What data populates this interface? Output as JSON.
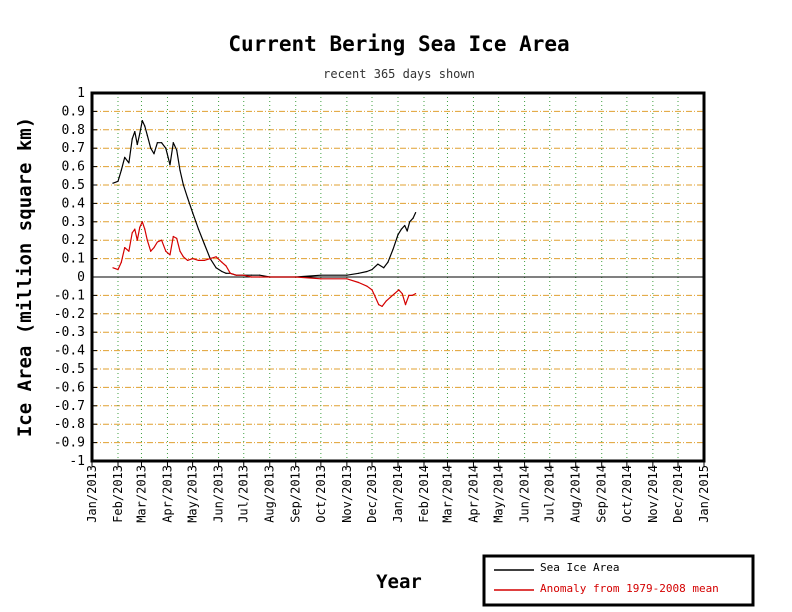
{
  "chart_data": {
    "type": "line",
    "title": "Current Bering Sea Ice Area",
    "subtitle": "recent 365 days shown",
    "xlabel": "Year",
    "ylabel": "Ice Area (million square km)",
    "ylim": [
      -1,
      1
    ],
    "y_ticks": [
      "1",
      "0.9",
      "0.8",
      "0.7",
      "0.6",
      "0.5",
      "0.4",
      "0.3",
      "0.2",
      "0.1",
      "0",
      "-0.1",
      "-0.2",
      "-0.3",
      "-0.4",
      "-0.5",
      "-0.6",
      "-0.7",
      "-0.8",
      "-0.9",
      "-1"
    ],
    "x_ticks": [
      "Jan/2013",
      "Feb/2013",
      "Mar/2013",
      "Apr/2013",
      "May/2013",
      "Jun/2013",
      "Jul/2013",
      "Aug/2013",
      "Sep/2013",
      "Oct/2013",
      "Nov/2013",
      "Dec/2013",
      "Jan/2014",
      "Feb/2014",
      "Mar/2014",
      "Apr/2014",
      "May/2014",
      "Jun/2014",
      "Jul/2014",
      "Aug/2014",
      "Sep/2014",
      "Oct/2014",
      "Nov/2014",
      "Dec/2014",
      "Jan/2015"
    ],
    "grid": true,
    "legend_position": "bottom-right",
    "colors": {
      "sea_ice": "#000000",
      "anomaly": "#d40000",
      "grid_h": "#e0a030",
      "grid_v": "#40a040",
      "zero_line": "#000000"
    },
    "series": [
      {
        "name": "Sea Ice Area",
        "x": [
          "2013-01-26",
          "2013-02-01",
          "2013-02-05",
          "2013-02-09",
          "2013-02-14",
          "2013-02-18",
          "2013-02-21",
          "2013-02-24",
          "2013-02-27",
          "2013-03-02",
          "2013-03-05",
          "2013-03-08",
          "2013-03-12",
          "2013-03-16",
          "2013-03-20",
          "2013-03-25",
          "2013-03-30",
          "2013-04-04",
          "2013-04-08",
          "2013-04-12",
          "2013-04-16",
          "2013-04-20",
          "2013-04-25",
          "2013-05-01",
          "2013-05-08",
          "2013-05-15",
          "2013-05-22",
          "2013-05-29",
          "2013-06-05",
          "2013-06-10",
          "2013-06-15",
          "2013-06-22",
          "2013-07-01",
          "2013-07-10",
          "2013-07-20",
          "2013-08-01",
          "2013-09-01",
          "2013-10-01",
          "2013-11-01",
          "2013-11-15",
          "2013-11-25",
          "2013-12-01",
          "2013-12-08",
          "2013-12-15",
          "2013-12-20",
          "2013-12-26",
          "2014-01-01",
          "2014-01-05",
          "2014-01-09",
          "2014-01-12",
          "2014-01-15",
          "2014-01-19",
          "2014-01-22"
        ],
        "values": [
          0.51,
          0.52,
          0.58,
          0.65,
          0.62,
          0.75,
          0.79,
          0.72,
          0.78,
          0.85,
          0.82,
          0.77,
          0.7,
          0.67,
          0.73,
          0.73,
          0.7,
          0.61,
          0.73,
          0.69,
          0.58,
          0.5,
          0.43,
          0.35,
          0.26,
          0.18,
          0.1,
          0.05,
          0.03,
          0.02,
          0.02,
          0.01,
          0.01,
          0.01,
          0.01,
          0.0,
          0.0,
          0.01,
          0.01,
          0.02,
          0.03,
          0.04,
          0.07,
          0.05,
          0.08,
          0.15,
          0.23,
          0.26,
          0.28,
          0.25,
          0.3,
          0.32,
          0.35
        ]
      },
      {
        "name": "Anomaly from 1979-2008 mean",
        "x": [
          "2013-01-26",
          "2013-02-01",
          "2013-02-05",
          "2013-02-09",
          "2013-02-14",
          "2013-02-18",
          "2013-02-21",
          "2013-02-24",
          "2013-02-27",
          "2013-03-02",
          "2013-03-05",
          "2013-03-08",
          "2013-03-12",
          "2013-03-16",
          "2013-03-20",
          "2013-03-25",
          "2013-03-30",
          "2013-04-04",
          "2013-04-08",
          "2013-04-12",
          "2013-04-16",
          "2013-04-20",
          "2013-04-25",
          "2013-05-01",
          "2013-05-08",
          "2013-05-15",
          "2013-05-22",
          "2013-05-29",
          "2013-06-05",
          "2013-06-10",
          "2013-06-15",
          "2013-06-22",
          "2013-07-01",
          "2013-07-10",
          "2013-07-20",
          "2013-08-01",
          "2013-09-01",
          "2013-10-01",
          "2013-11-01",
          "2013-11-15",
          "2013-11-25",
          "2013-12-01",
          "2013-12-05",
          "2013-12-09",
          "2013-12-13",
          "2013-12-18",
          "2013-12-23",
          "2013-12-28",
          "2014-01-02",
          "2014-01-06",
          "2014-01-10",
          "2014-01-14",
          "2014-01-18",
          "2014-01-22"
        ],
        "values": [
          0.05,
          0.04,
          0.08,
          0.16,
          0.14,
          0.24,
          0.26,
          0.2,
          0.27,
          0.3,
          0.26,
          0.2,
          0.14,
          0.16,
          0.19,
          0.2,
          0.14,
          0.12,
          0.22,
          0.21,
          0.14,
          0.11,
          0.09,
          0.1,
          0.09,
          0.09,
          0.1,
          0.11,
          0.08,
          0.06,
          0.02,
          0.01,
          0.01,
          0.0,
          0.0,
          0.0,
          0.0,
          -0.01,
          -0.01,
          -0.03,
          -0.05,
          -0.07,
          -0.11,
          -0.15,
          -0.16,
          -0.13,
          -0.11,
          -0.09,
          -0.07,
          -0.09,
          -0.15,
          -0.1,
          -0.1,
          -0.09
        ]
      }
    ]
  }
}
